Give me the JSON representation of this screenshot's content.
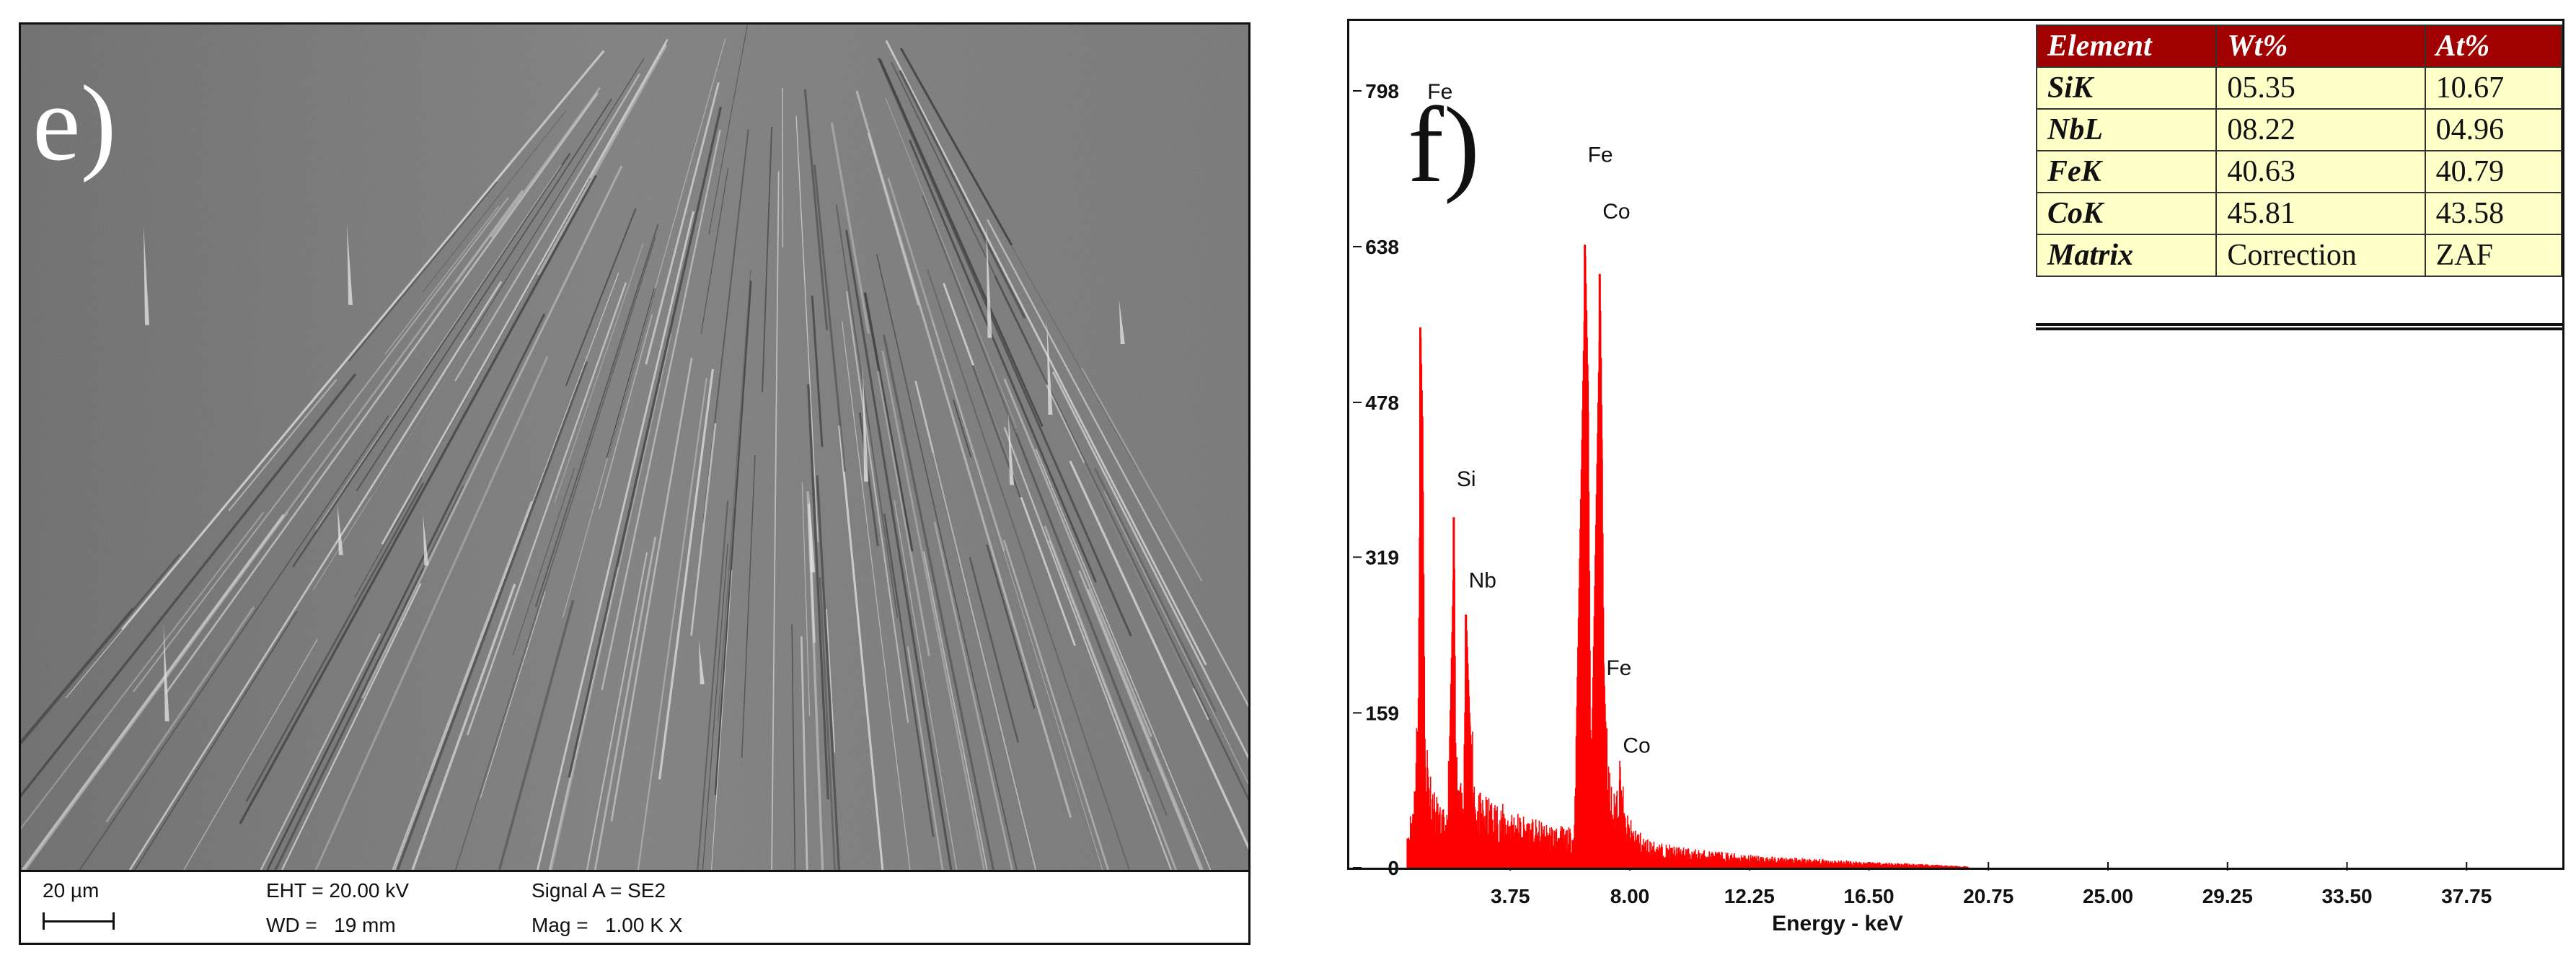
{
  "sem": {
    "panel_letter": "e)",
    "scale_label": "20 µm",
    "eht": "EHT = 20.00 kV",
    "wd": "WD =   19 mm",
    "signal": "Signal A = SE2",
    "mag": "Mag =   1.00 K X"
  },
  "eds": {
    "panel_letter": "f)",
    "table": {
      "headers": [
        "Element",
        "Wt%",
        "At%"
      ],
      "rows": [
        [
          "SiK",
          "05.35",
          "10.67"
        ],
        [
          "NbL",
          "08.22",
          "04.96"
        ],
        [
          "FeK",
          "40.63",
          "40.79"
        ],
        [
          "CoK",
          "45.81",
          "43.58"
        ],
        [
          "Matrix",
          "Correction",
          "ZAF"
        ]
      ]
    },
    "colors": {
      "spectrum": "#ff0000",
      "table_header": "#a00000",
      "table_body": "#ffffc8"
    }
  },
  "chart_data": {
    "type": "area",
    "title": "",
    "xlabel": "Energy - keV",
    "ylabel": "",
    "xlim": [
      0,
      40
    ],
    "ylim": [
      0,
      798
    ],
    "x_ticks": [
      "3.75",
      "8.00",
      "12.25",
      "16.50",
      "20.75",
      "25.00",
      "29.25",
      "33.50",
      "37.75"
    ],
    "y_ticks": [
      "0",
      "159",
      "319",
      "478",
      "638",
      "798"
    ],
    "grid": false,
    "series": [
      {
        "points": [
          [
            0.1,
            30
          ],
          [
            0.3,
            55
          ],
          [
            0.45,
            140
          ],
          [
            0.55,
            555
          ],
          [
            0.62,
            460
          ],
          [
            0.7,
            120
          ],
          [
            0.85,
            80
          ],
          [
            1.0,
            60
          ],
          [
            1.2,
            45
          ],
          [
            1.5,
            38
          ],
          [
            1.74,
            360
          ],
          [
            1.8,
            90
          ],
          [
            1.9,
            60
          ],
          [
            2.05,
            60
          ],
          [
            2.17,
            260
          ],
          [
            2.3,
            150
          ],
          [
            2.5,
            55
          ],
          [
            3.0,
            50
          ],
          [
            3.5,
            45
          ],
          [
            4.0,
            40
          ],
          [
            4.5,
            35
          ],
          [
            5.0,
            32
          ],
          [
            5.5,
            30
          ],
          [
            6.0,
            28
          ],
          [
            6.4,
            640
          ],
          [
            6.5,
            500
          ],
          [
            6.6,
            90
          ],
          [
            6.93,
            610
          ],
          [
            7.0,
            440
          ],
          [
            7.06,
            210
          ],
          [
            7.2,
            80
          ],
          [
            7.4,
            50
          ],
          [
            7.65,
            90
          ],
          [
            7.8,
            40
          ],
          [
            8.5,
            22
          ],
          [
            9.0,
            18
          ],
          [
            10.0,
            14
          ],
          [
            11.0,
            12
          ],
          [
            12.0,
            10
          ],
          [
            13.0,
            8
          ],
          [
            14.0,
            7
          ],
          [
            15.0,
            6
          ],
          [
            16.0,
            5
          ],
          [
            17.0,
            4
          ],
          [
            18.0,
            3
          ],
          [
            19.0,
            2
          ],
          [
            20.0,
            1
          ]
        ]
      }
    ],
    "peak_labels": [
      {
        "text": "Fe",
        "x": 0.7,
        "y": 790
      },
      {
        "text": "Si",
        "x": 1.74,
        "y": 392
      },
      {
        "text": "Nb",
        "x": 2.17,
        "y": 288
      },
      {
        "text": "Fe",
        "x": 6.4,
        "y": 725
      },
      {
        "text": "Co",
        "x": 6.93,
        "y": 667
      },
      {
        "text": "Fe",
        "x": 7.06,
        "y": 198
      },
      {
        "text": "Co",
        "x": 7.65,
        "y": 118
      }
    ]
  }
}
